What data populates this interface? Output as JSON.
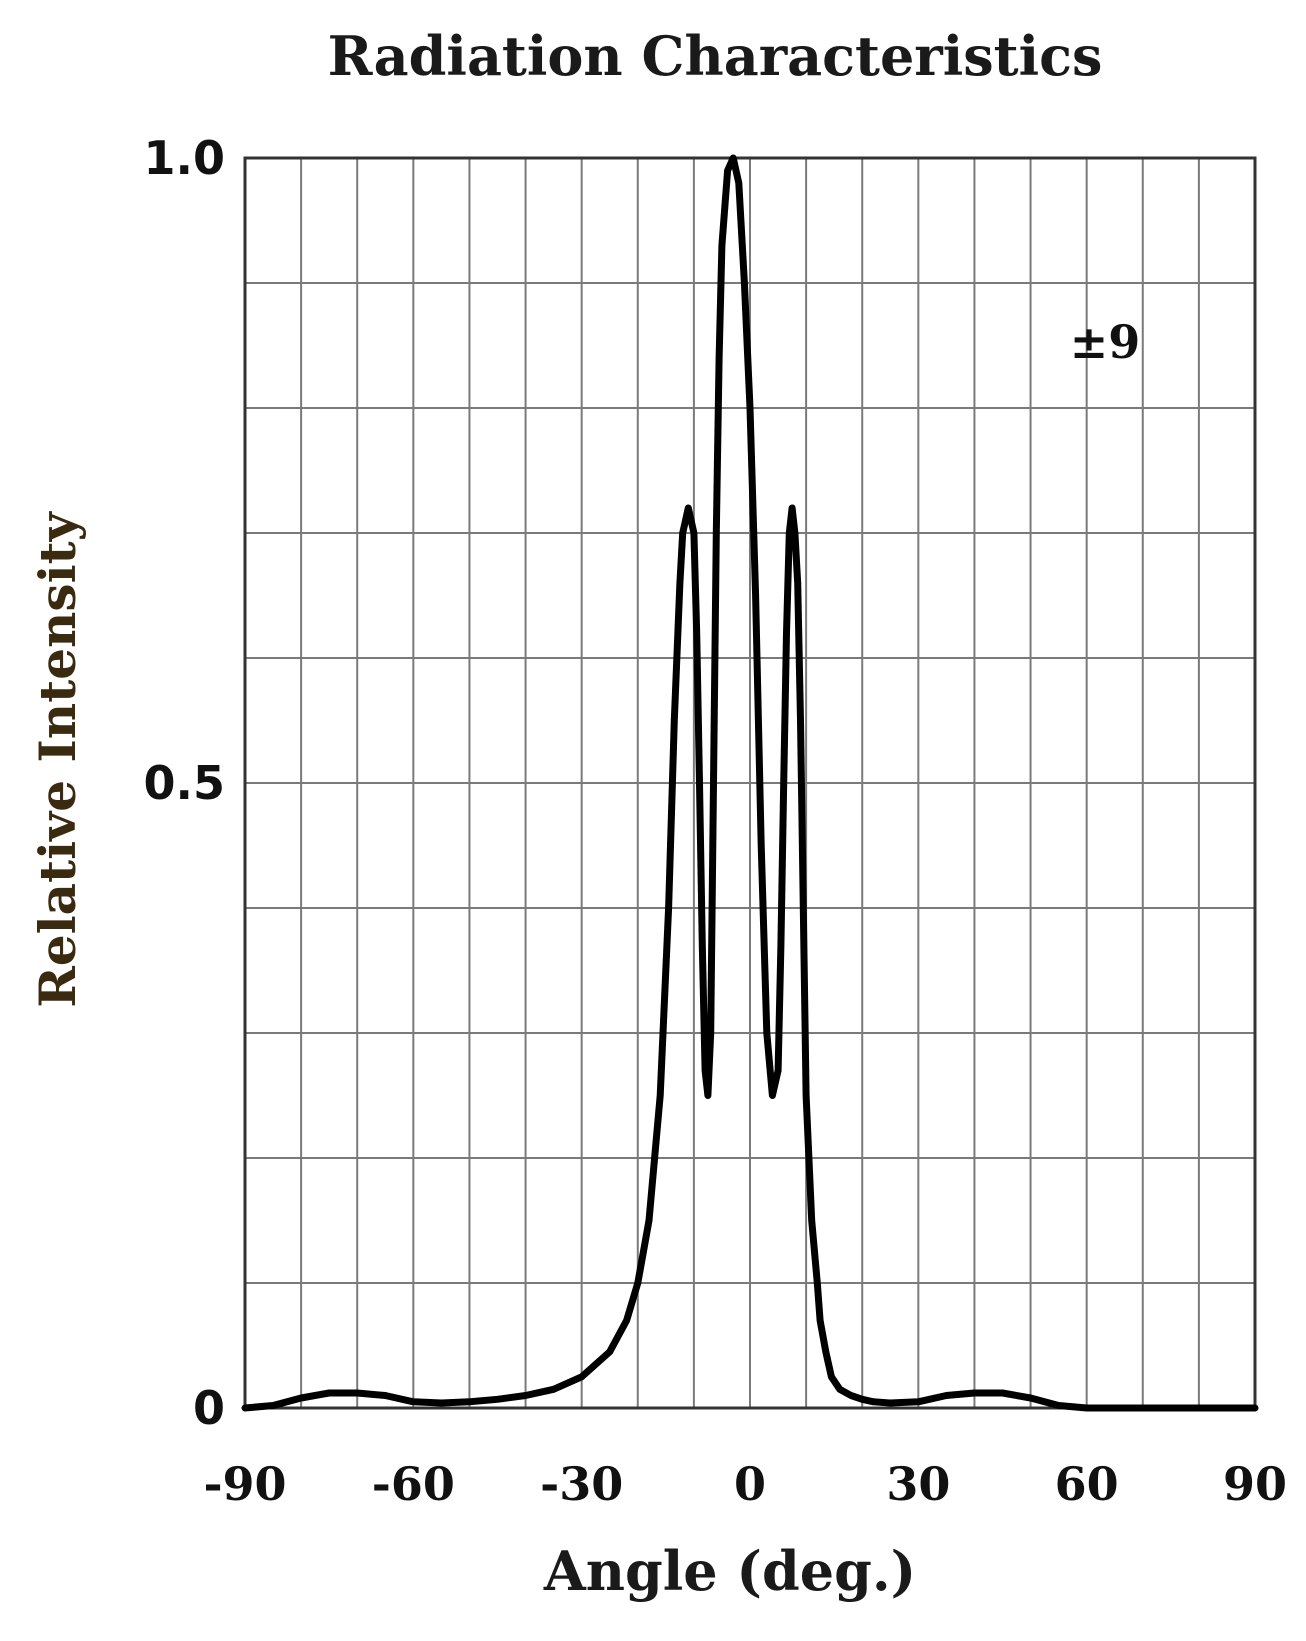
{
  "chart_data": {
    "type": "line",
    "title": "Radiation Characteristics",
    "xlabel": "Angle (deg.)",
    "ylabel": "Relative Intensity",
    "xlim": [
      -90,
      90
    ],
    "ylim": [
      0,
      1.0
    ],
    "x_ticks": [
      "-90",
      "-60",
      "-30",
      "0",
      "30",
      "60",
      "90"
    ],
    "x_tick_values": [
      -90,
      -60,
      -30,
      0,
      30,
      60,
      90
    ],
    "y_ticks": [
      "0",
      "0.5",
      "1.0"
    ],
    "y_tick_values": [
      0,
      0.5,
      1.0
    ],
    "grid": true,
    "x_grid_step": 10,
    "y_grid_step": 0.1,
    "annotation": "±9",
    "series": [
      {
        "x": [
          -90,
          -85,
          -80,
          -75,
          -70,
          -65,
          -60,
          -55,
          -50,
          -45,
          -40,
          -35,
          -30,
          -25,
          -22,
          -20,
          -18,
          -16,
          -14.5,
          -13.5,
          -12.5,
          -12,
          -11,
          -10,
          -9.5,
          -9,
          -8.5,
          -8,
          -7.5,
          -7,
          -6.5,
          -6,
          -5.5,
          -5,
          -4,
          -3,
          -2,
          -1,
          0,
          1,
          2,
          3,
          4,
          5,
          5.5,
          6,
          6.5,
          7,
          7.5,
          8,
          8.5,
          9,
          9.5,
          10,
          11,
          12,
          12.5,
          13.5,
          14.5,
          16,
          18,
          20,
          22,
          25,
          30,
          35,
          40,
          45,
          50,
          55,
          60,
          65,
          70,
          75,
          80,
          85,
          90
        ],
        "y": [
          0.0,
          0.002,
          0.008,
          0.012,
          0.012,
          0.01,
          0.005,
          0.004,
          0.005,
          0.007,
          0.01,
          0.015,
          0.025,
          0.045,
          0.07,
          0.1,
          0.15,
          0.25,
          0.4,
          0.55,
          0.66,
          0.7,
          0.72,
          0.7,
          0.62,
          0.5,
          0.37,
          0.27,
          0.25,
          0.3,
          0.5,
          0.7,
          0.84,
          0.93,
          0.99,
          1.0,
          0.98,
          0.9,
          0.8,
          0.65,
          0.45,
          0.3,
          0.25,
          0.27,
          0.37,
          0.5,
          0.62,
          0.7,
          0.72,
          0.7,
          0.66,
          0.55,
          0.4,
          0.25,
          0.15,
          0.1,
          0.07,
          0.045,
          0.025,
          0.015,
          0.01,
          0.007,
          0.005,
          0.004,
          0.005,
          0.01,
          0.012,
          0.012,
          0.008,
          0.002,
          0.0,
          0.0,
          0.0,
          0.0,
          0.0,
          0.0,
          0.0
        ]
      }
    ]
  }
}
